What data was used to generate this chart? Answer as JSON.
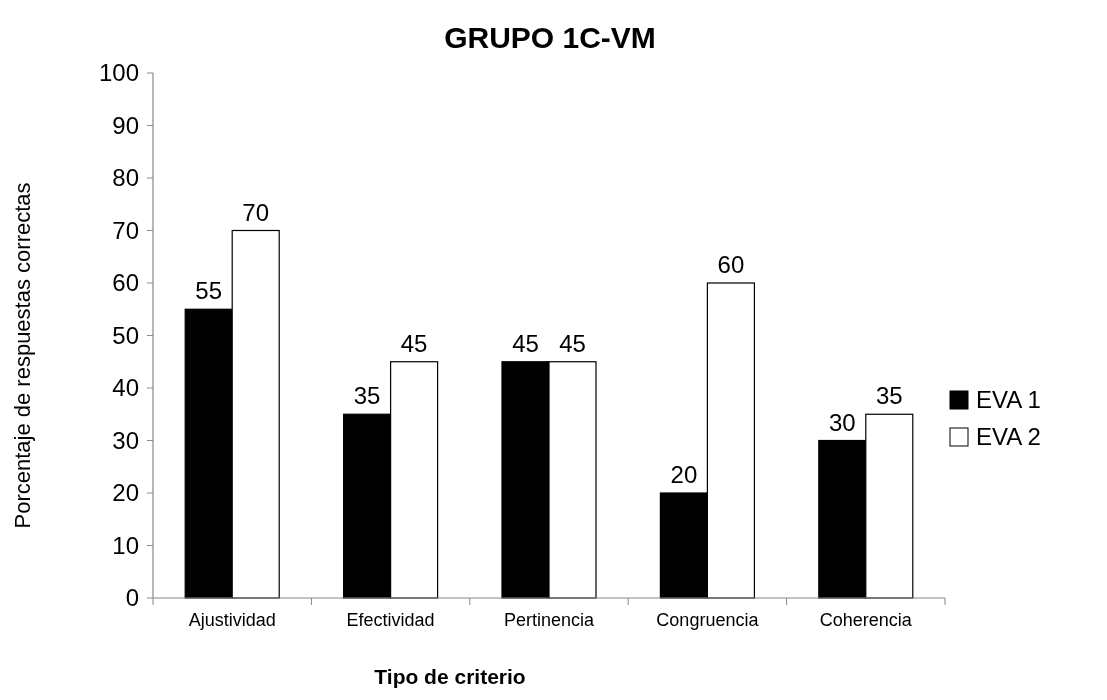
{
  "chart_data": {
    "type": "bar",
    "title": "GRUPO 1C-VM",
    "xlabel": "Tipo de criterio",
    "ylabel": "Porcentaje de respuestas correctas",
    "categories": [
      "Ajustividad",
      "Efectividad",
      "Pertinencia",
      "Congruencia",
      "Coherencia"
    ],
    "series": [
      {
        "name": "EVA 1",
        "color": "#000000",
        "values": [
          55,
          35,
          45,
          20,
          30
        ]
      },
      {
        "name": "EVA 2",
        "color": "#ffffff",
        "values": [
          70,
          45,
          45,
          60,
          35
        ]
      }
    ],
    "ylim": [
      0,
      100
    ],
    "yticks": [
      0,
      10,
      20,
      30,
      40,
      50,
      60,
      70,
      80,
      90,
      100
    ],
    "grid": false,
    "legend": "right",
    "data_labels": true
  }
}
